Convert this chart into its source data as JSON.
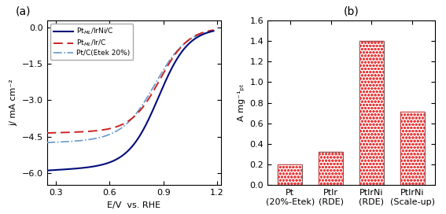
{
  "panel_a_label": "(a)",
  "panel_b_label": "(b)",
  "xlabel_a": "E/V  vs. RHE",
  "ylabel_a": "j/ mA cm⁻²",
  "ylabel_b": "A mg⁻¹ₚₜ",
  "xlim_a": [
    0.25,
    1.22
  ],
  "ylim_a": [
    -6.5,
    0.3
  ],
  "xticks_a": [
    0.3,
    0.6,
    0.9,
    1.2
  ],
  "yticks_a": [
    0.0,
    -1.5,
    -3.0,
    -4.5,
    -6.0
  ],
  "bar_categories": [
    "Pt\n(20%-Etek)",
    "PtIr\n(RDE)",
    "PtIrNi\n(RDE)",
    "PtIrNi\n(Scale-up)"
  ],
  "bar_values": [
    0.2,
    0.32,
    1.4,
    0.71
  ],
  "ylim_b": [
    0,
    1.6
  ],
  "yticks_b": [
    0.0,
    0.2,
    0.4,
    0.6,
    0.8,
    1.0,
    1.2,
    1.4,
    1.6
  ],
  "bar_facecolor": "#e84040",
  "bar_edge_color": "#555555",
  "legend_label1": "Pt$_{ML}$/IrNi/C",
  "legend_label2": "Pt$_{ML}$/Ir/C",
  "legend_label3": "Pt/C(Etek 20%)",
  "line1_color": "#000c7a",
  "line2_color": "#cc2222",
  "line3_color": "#6699cc",
  "figure_bg": "#ffffff"
}
